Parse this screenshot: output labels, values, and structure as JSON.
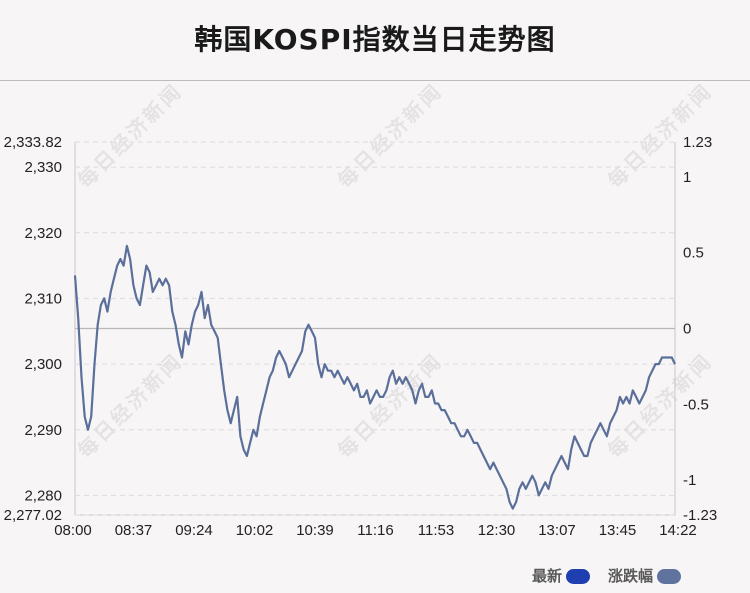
{
  "title": "韩国KOSPI指数当日走势图",
  "watermark": "每日经济新闻",
  "legend": {
    "latest": {
      "label": "最新",
      "color": "#1f3fb0"
    },
    "change": {
      "label": "涨跌幅",
      "color": "#60739f"
    }
  },
  "chart_data": {
    "type": "line",
    "title": "韩国KOSPI指数当日走势图",
    "x_ticks": [
      "08:00",
      "08:37",
      "09:24",
      "10:02",
      "10:39",
      "11:16",
      "11:53",
      "12:30",
      "13:07",
      "13:45",
      "14:22"
    ],
    "y_left_ticks": [
      "2,333.82",
      "2,330",
      "2,320",
      "2,310",
      "2,300",
      "2,290",
      "2,280",
      "2,277.02"
    ],
    "y_right_ticks": [
      "1.23",
      "1",
      "0.5",
      "0",
      "-0.5",
      "-1",
      "-1.23"
    ],
    "ylim_left": [
      2277.02,
      2333.82
    ],
    "ylim_right": [
      -1.23,
      1.23
    ],
    "baseline_close": 2305.4,
    "line_color": "#5a6f9a",
    "grid": "dashed horizontal",
    "series": [
      {
        "name": "最新",
        "values": [
          2313.5,
          2307,
          2298,
          2292,
          2290,
          2292,
          2300,
          2306,
          2309,
          2310,
          2308,
          2311,
          2313,
          2315,
          2316,
          2315,
          2318,
          2316,
          2312,
          2310,
          2309,
          2312,
          2315,
          2314,
          2311,
          2312,
          2313,
          2312,
          2313,
          2312,
          2308,
          2306,
          2303,
          2301,
          2305,
          2303,
          2306,
          2308,
          2309,
          2311,
          2307,
          2309,
          2306,
          2305,
          2304,
          2300,
          2296,
          2293,
          2291,
          2293,
          2295,
          2289,
          2287,
          2286,
          2288,
          2290,
          2289,
          2292,
          2294,
          2296,
          2298,
          2299,
          2301,
          2302,
          2301,
          2300,
          2298,
          2299,
          2300,
          2301,
          2302,
          2305,
          2306,
          2305,
          2304,
          2300,
          2298,
          2300,
          2299,
          2299,
          2298,
          2299,
          2298,
          2297,
          2298,
          2297,
          2296,
          2297,
          2295,
          2295,
          2296,
          2294,
          2295,
          2296,
          2295,
          2295,
          2296,
          2298,
          2299,
          2297,
          2298,
          2297,
          2298,
          2297,
          2296,
          2294,
          2296,
          2297,
          2295,
          2295,
          2296,
          2294,
          2294,
          2293,
          2293,
          2292,
          2291,
          2291,
          2290,
          2289,
          2289,
          2290,
          2289,
          2288,
          2288,
          2287,
          2286,
          2285,
          2284,
          2285,
          2284,
          2283,
          2282,
          2281,
          2279,
          2278,
          2279,
          2281,
          2282,
          2281,
          2282,
          2283,
          2282,
          2280,
          2281,
          2282,
          2281,
          2283,
          2284,
          2285,
          2286,
          2285,
          2284,
          2287,
          2289,
          2288,
          2287,
          2286,
          2286,
          2288,
          2289,
          2290,
          2291,
          2290,
          2289,
          2291,
          2292,
          2293,
          2295,
          2294,
          2295,
          2294,
          2296,
          2295,
          2294,
          2295,
          2296,
          2298,
          2299,
          2300,
          2300,
          2301,
          2301,
          2301,
          2301,
          2300
        ]
      }
    ]
  }
}
